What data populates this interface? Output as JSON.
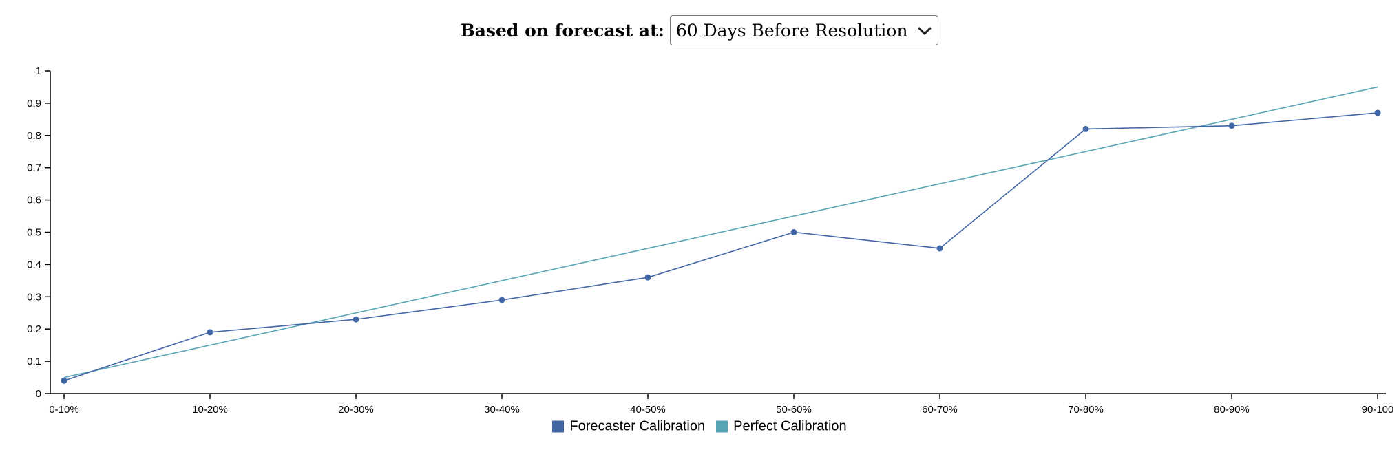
{
  "controls": {
    "label": "Based on forecast at:",
    "selected_option": "60 Days Before Resolution"
  },
  "colors": {
    "forecaster": "#4066a6",
    "perfect": "#56a5b4",
    "axis": "#000000"
  },
  "chart_data": {
    "type": "line",
    "categories": [
      "0-10%",
      "10-20%",
      "20-30%",
      "30-40%",
      "40-50%",
      "50-60%",
      "60-70%",
      "70-80%",
      "80-90%",
      "90-100"
    ],
    "series": [
      {
        "name": "Forecaster Calibration",
        "values": [
          0.04,
          0.19,
          0.23,
          0.29,
          0.36,
          0.5,
          0.45,
          0.82,
          0.83,
          0.87
        ],
        "markers": true,
        "color": "#4066a6"
      },
      {
        "name": "Perfect Calibration",
        "values": [
          0.05,
          0.15,
          0.25,
          0.35,
          0.45,
          0.55,
          0.65,
          0.75,
          0.85,
          0.95
        ],
        "markers": false,
        "color": "#56a5b4"
      }
    ],
    "yticks": [
      "0",
      "0.1",
      "0.2",
      "0.3",
      "0.4",
      "0.5",
      "0.6",
      "0.7",
      "0.8",
      "0.9",
      "1"
    ],
    "ylim": [
      0,
      1
    ],
    "grid": false,
    "legend_position": "bottom-center"
  }
}
